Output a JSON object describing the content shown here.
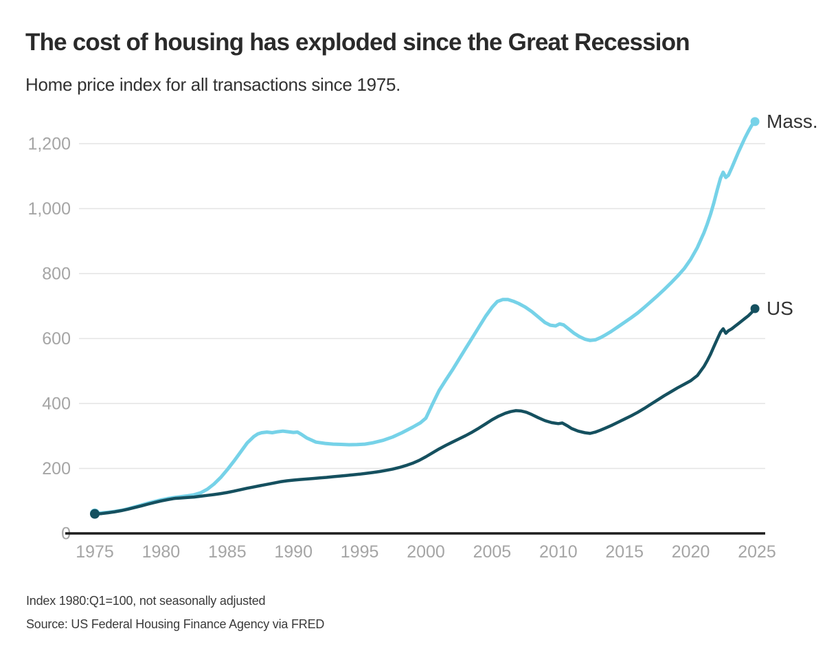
{
  "header": {
    "title": "The cost of housing has exploded since the Great Recession",
    "subtitle": "Home price index for all transactions since 1975."
  },
  "footer": {
    "note": "Index 1980:Q1=100, not seasonally adjusted",
    "source": "Source: US Federal Housing Finance Agency via FRED"
  },
  "chart_data": {
    "type": "line",
    "title": "The cost of housing has exploded since the Great Recession",
    "subtitle": "Home price index for all transactions since 1975.",
    "xlabel": "",
    "ylabel": "",
    "x_range": [
      1975,
      2025
    ],
    "ylim": [
      0,
      1300
    ],
    "grid": true,
    "legend_position": "end-of-line-labels",
    "colors": {
      "grid": "#e4e4e4",
      "axis": "#1d1d1d",
      "tick_label": "#a5a5a5",
      "series_label": "#333333",
      "mass": "#76d2e8",
      "us": "#15505f"
    },
    "yticks": [
      {
        "value": 0,
        "label": "0"
      },
      {
        "value": 200,
        "label": "200"
      },
      {
        "value": 400,
        "label": "400"
      },
      {
        "value": 600,
        "label": "600"
      },
      {
        "value": 800,
        "label": "800"
      },
      {
        "value": 1000,
        "label": "1,000"
      },
      {
        "value": 1200,
        "label": "1,200"
      }
    ],
    "xticks": [
      {
        "value": 1975,
        "label": "1975"
      },
      {
        "value": 1980,
        "label": "1980"
      },
      {
        "value": 1985,
        "label": "1985"
      },
      {
        "value": 1990,
        "label": "1990"
      },
      {
        "value": 1995,
        "label": "1995"
      },
      {
        "value": 2000,
        "label": "2000"
      },
      {
        "value": 2005,
        "label": "2005"
      },
      {
        "value": 2010,
        "label": "2010"
      },
      {
        "value": 2015,
        "label": "2015"
      },
      {
        "value": 2020,
        "label": "2020"
      },
      {
        "value": 2025,
        "label": "2025"
      }
    ],
    "series": [
      {
        "name": "Mass.",
        "color": "#76d2e8",
        "stroke_width": 5,
        "start_dot": true,
        "end_dot": true,
        "points": [
          [
            1975,
            62
          ],
          [
            1975.5,
            63
          ],
          [
            1976,
            65
          ],
          [
            1976.5,
            67.5
          ],
          [
            1977,
            71
          ],
          [
            1977.5,
            75.5
          ],
          [
            1978,
            81
          ],
          [
            1978.5,
            87
          ],
          [
            1979,
            93
          ],
          [
            1979.5,
            98
          ],
          [
            1980,
            103
          ],
          [
            1980.5,
            107
          ],
          [
            1981,
            110.5
          ],
          [
            1981.5,
            113
          ],
          [
            1982,
            115.5
          ],
          [
            1982.5,
            119
          ],
          [
            1983,
            125
          ],
          [
            1983.5,
            136
          ],
          [
            1984,
            152
          ],
          [
            1984.5,
            172
          ],
          [
            1985,
            196
          ],
          [
            1985.5,
            222
          ],
          [
            1986,
            250
          ],
          [
            1986.5,
            278
          ],
          [
            1987,
            298
          ],
          [
            1987.3,
            306
          ],
          [
            1987.6,
            310
          ],
          [
            1988,
            312
          ],
          [
            1988.4,
            310
          ],
          [
            1988.8,
            313
          ],
          [
            1989.2,
            315
          ],
          [
            1989.6,
            313
          ],
          [
            1990,
            311
          ],
          [
            1990.3,
            312
          ],
          [
            1990.6,
            305
          ],
          [
            1991,
            294
          ],
          [
            1991.7,
            281
          ],
          [
            1992.4,
            277
          ],
          [
            1993,
            275
          ],
          [
            1993.6,
            274
          ],
          [
            1994.2,
            273
          ],
          [
            1994.8,
            273.5
          ],
          [
            1995.4,
            275
          ],
          [
            1996,
            279
          ],
          [
            1996.8,
            287
          ],
          [
            1997.5,
            297
          ],
          [
            1998.2,
            310
          ],
          [
            1999,
            327
          ],
          [
            1999.6,
            341
          ],
          [
            2000,
            355
          ],
          [
            2000.5,
            398
          ],
          [
            2001,
            440
          ],
          [
            2001.5,
            472
          ],
          [
            2002,
            503
          ],
          [
            2002.5,
            536
          ],
          [
            2003,
            569
          ],
          [
            2003.5,
            602
          ],
          [
            2004,
            635
          ],
          [
            2004.5,
            668
          ],
          [
            2005,
            696
          ],
          [
            2005.4,
            714
          ],
          [
            2005.8,
            720
          ],
          [
            2006.2,
            720
          ],
          [
            2006.6,
            715
          ],
          [
            2007,
            708
          ],
          [
            2007.5,
            697
          ],
          [
            2008,
            683
          ],
          [
            2008.5,
            666
          ],
          [
            2009,
            649
          ],
          [
            2009.4,
            641
          ],
          [
            2009.8,
            639
          ],
          [
            2010.1,
            645
          ],
          [
            2010.4,
            642
          ],
          [
            2010.8,
            629
          ],
          [
            2011.2,
            616
          ],
          [
            2011.6,
            606
          ],
          [
            2012,
            598
          ],
          [
            2012.4,
            594
          ],
          [
            2012.8,
            596
          ],
          [
            2013.2,
            603
          ],
          [
            2013.6,
            612
          ],
          [
            2014,
            622
          ],
          [
            2014.5,
            636
          ],
          [
            2015,
            650
          ],
          [
            2015.5,
            664
          ],
          [
            2016,
            679
          ],
          [
            2016.5,
            696
          ],
          [
            2017,
            714
          ],
          [
            2017.5,
            732
          ],
          [
            2018,
            751
          ],
          [
            2018.5,
            771
          ],
          [
            2019,
            792
          ],
          [
            2019.5,
            815
          ],
          [
            2020,
            844
          ],
          [
            2020.5,
            880
          ],
          [
            2021,
            926
          ],
          [
            2021.25,
            953
          ],
          [
            2021.5,
            983
          ],
          [
            2021.75,
            1018
          ],
          [
            2022,
            1058
          ],
          [
            2022.25,
            1094
          ],
          [
            2022.45,
            1112
          ],
          [
            2022.65,
            1096
          ],
          [
            2022.85,
            1103
          ],
          [
            2023.1,
            1126
          ],
          [
            2023.35,
            1150
          ],
          [
            2023.6,
            1174
          ],
          [
            2023.85,
            1196
          ],
          [
            2024.1,
            1218
          ],
          [
            2024.35,
            1238
          ],
          [
            2024.6,
            1256
          ],
          [
            2024.85,
            1268
          ]
        ]
      },
      {
        "name": "US",
        "color": "#15505f",
        "stroke_width": 4.5,
        "start_dot": true,
        "end_dot": true,
        "points": [
          [
            1975,
            60
          ],
          [
            1975.5,
            61
          ],
          [
            1976,
            63.5
          ],
          [
            1976.5,
            66.5
          ],
          [
            1977,
            70
          ],
          [
            1977.5,
            74.5
          ],
          [
            1978,
            79.5
          ],
          [
            1978.5,
            84.5
          ],
          [
            1979,
            90
          ],
          [
            1979.5,
            95
          ],
          [
            1980,
            100
          ],
          [
            1980.5,
            104
          ],
          [
            1981,
            107.5
          ],
          [
            1981.5,
            109
          ],
          [
            1982,
            110.5
          ],
          [
            1982.5,
            112
          ],
          [
            1983,
            114.5
          ],
          [
            1983.5,
            117
          ],
          [
            1984,
            119.5
          ],
          [
            1984.5,
            122.5
          ],
          [
            1985,
            126
          ],
          [
            1985.5,
            130
          ],
          [
            1986,
            134.5
          ],
          [
            1986.5,
            139
          ],
          [
            1987,
            143
          ],
          [
            1987.5,
            147
          ],
          [
            1988,
            151
          ],
          [
            1988.5,
            155
          ],
          [
            1989,
            159
          ],
          [
            1989.5,
            162
          ],
          [
            1990,
            164
          ],
          [
            1990.5,
            166
          ],
          [
            1991,
            167.5
          ],
          [
            1991.5,
            169
          ],
          [
            1992,
            171
          ],
          [
            1992.5,
            172.5
          ],
          [
            1993,
            174.5
          ],
          [
            1993.5,
            176.5
          ],
          [
            1994,
            178.5
          ],
          [
            1994.5,
            180.5
          ],
          [
            1995,
            182.5
          ],
          [
            1995.5,
            185
          ],
          [
            1996,
            187.5
          ],
          [
            1996.5,
            190.5
          ],
          [
            1997,
            194
          ],
          [
            1997.5,
            198
          ],
          [
            1998,
            203
          ],
          [
            1998.5,
            209
          ],
          [
            1999,
            216
          ],
          [
            1999.5,
            225
          ],
          [
            2000,
            236
          ],
          [
            2000.5,
            248
          ],
          [
            2001,
            260
          ],
          [
            2001.5,
            271
          ],
          [
            2002,
            281
          ],
          [
            2002.5,
            291
          ],
          [
            2003,
            301
          ],
          [
            2003.5,
            312
          ],
          [
            2004,
            324
          ],
          [
            2004.5,
            337
          ],
          [
            2005,
            350
          ],
          [
            2005.5,
            361
          ],
          [
            2006,
            370
          ],
          [
            2006.4,
            375
          ],
          [
            2006.8,
            378
          ],
          [
            2007.2,
            377
          ],
          [
            2007.6,
            373
          ],
          [
            2008,
            366
          ],
          [
            2008.5,
            356
          ],
          [
            2009,
            347
          ],
          [
            2009.5,
            341
          ],
          [
            2010,
            338
          ],
          [
            2010.3,
            340
          ],
          [
            2010.7,
            331
          ],
          [
            2011,
            323
          ],
          [
            2011.5,
            315
          ],
          [
            2012,
            310
          ],
          [
            2012.4,
            308
          ],
          [
            2012.8,
            312
          ],
          [
            2013.2,
            318
          ],
          [
            2013.6,
            325
          ],
          [
            2014,
            332
          ],
          [
            2014.5,
            342
          ],
          [
            2015,
            352
          ],
          [
            2015.5,
            362
          ],
          [
            2016,
            373
          ],
          [
            2016.5,
            385
          ],
          [
            2017,
            398
          ],
          [
            2017.5,
            411
          ],
          [
            2018,
            424
          ],
          [
            2018.5,
            436
          ],
          [
            2019,
            448
          ],
          [
            2019.5,
            459
          ],
          [
            2020,
            470
          ],
          [
            2020.5,
            486
          ],
          [
            2021,
            514
          ],
          [
            2021.25,
            532
          ],
          [
            2021.5,
            552
          ],
          [
            2021.75,
            575
          ],
          [
            2022,
            598
          ],
          [
            2022.25,
            620
          ],
          [
            2022.45,
            630
          ],
          [
            2022.65,
            616
          ],
          [
            2022.85,
            624
          ],
          [
            2023.1,
            630
          ],
          [
            2023.35,
            638
          ],
          [
            2023.6,
            646
          ],
          [
            2023.85,
            654
          ],
          [
            2024.1,
            662
          ],
          [
            2024.35,
            670
          ],
          [
            2024.6,
            680
          ],
          [
            2024.85,
            692
          ]
        ]
      }
    ]
  }
}
